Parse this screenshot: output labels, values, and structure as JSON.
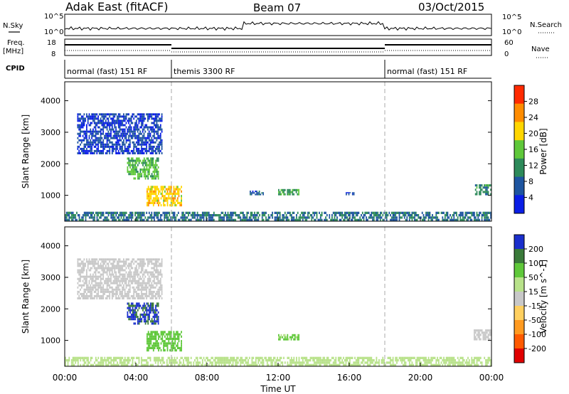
{
  "header": {
    "title_left": "Adak East (fitACF)",
    "title_center": "Beam 07",
    "title_right": "03/Oct/2015"
  },
  "strips": {
    "nsky_label": "N.Sky",
    "nsky_ticks": [
      "10^5",
      "10^0"
    ],
    "nsearch_label": "N.Search",
    "nsearch_ticks": [
      "10^5",
      "10^0"
    ],
    "freq_label": "Freq.",
    "freq_unit": "[MHz]",
    "freq_ticks": [
      "18",
      "8"
    ],
    "nave_label": "Nave",
    "nave_ticks": [
      "60",
      "0"
    ],
    "cpid_label": "CPID",
    "cpid_segments": [
      {
        "label": "normal (fast) 151 RF",
        "start_h": 0,
        "end_h": 6
      },
      {
        "label": "themis 3300 RF",
        "start_h": 6,
        "end_h": 18
      },
      {
        "label": "normal (fast) 151 RF",
        "start_h": 18,
        "end_h": 24
      }
    ]
  },
  "chart_data": [
    {
      "type": "heatmap",
      "name": "power",
      "ylabel": "Slant Range [km]",
      "yticks": [
        "1000",
        "2000",
        "3000",
        "4000"
      ],
      "ylim": [
        180,
        4600
      ],
      "xlim_hours": [
        0,
        24
      ],
      "colorbar": {
        "label": "Power [dB]",
        "ticks": [
          "4",
          "8",
          "12",
          "16",
          "20",
          "24",
          "28"
        ],
        "colors": [
          "#0a1ee6",
          "#1e55a0",
          "#2d8a5a",
          "#5fc83a",
          "#ffd600",
          "#ff8c00",
          "#ff2a00"
        ]
      },
      "echo_regions": [
        {
          "start_h": 0.7,
          "end_h": 5.5,
          "r_min": 2300,
          "r_max": 3600,
          "level": 4
        },
        {
          "start_h": 3.5,
          "end_h": 5.3,
          "r_min": 1500,
          "r_max": 2200,
          "level": 14
        },
        {
          "start_h": 4.6,
          "end_h": 6.6,
          "r_min": 650,
          "r_max": 1300,
          "level": 20
        },
        {
          "start_h": 10.4,
          "end_h": 11.2,
          "r_min": 1000,
          "r_max": 1150,
          "level": 6
        },
        {
          "start_h": 12.0,
          "end_h": 13.2,
          "r_min": 1000,
          "r_max": 1200,
          "level": 12
        },
        {
          "start_h": 15.8,
          "end_h": 16.3,
          "r_min": 1000,
          "r_max": 1100,
          "level": 4
        },
        {
          "start_h": 23.0,
          "end_h": 24.0,
          "r_min": 1000,
          "r_max": 1350,
          "level": 10
        },
        {
          "start_h": 0.0,
          "end_h": 24.0,
          "r_min": 180,
          "r_max": 480,
          "level": 8
        }
      ]
    },
    {
      "type": "heatmap",
      "name": "velocity",
      "ylabel": "Slant Range [km]",
      "yticks": [
        "1000",
        "2000",
        "3000",
        "4000"
      ],
      "ylim": [
        180,
        4600
      ],
      "xlim_hours": [
        0,
        24
      ],
      "colorbar": {
        "label": "Velocity [m s^-1]",
        "ticks": [
          "200",
          "100",
          "50",
          "15",
          "-15",
          "-50",
          "-100",
          "-200"
        ],
        "colors": [
          "#1a2fcc",
          "#3a7a3a",
          "#5fc83a",
          "#b8e28a",
          "#c8c8c8",
          "#ffd060",
          "#ff9a20",
          "#ff5a00",
          "#e00000"
        ]
      },
      "echo_regions": [
        {
          "start_h": 0.7,
          "end_h": 5.5,
          "r_min": 2300,
          "r_max": 3600,
          "level": 10
        },
        {
          "start_h": 3.5,
          "end_h": 5.3,
          "r_min": 1500,
          "r_max": 2200,
          "level": 200
        },
        {
          "start_h": 4.6,
          "end_h": 6.6,
          "r_min": 650,
          "r_max": 1300,
          "level": 90
        },
        {
          "start_h": 12.0,
          "end_h": 13.2,
          "r_min": 1000,
          "r_max": 1200,
          "level": 50
        },
        {
          "start_h": 23.0,
          "end_h": 24.0,
          "r_min": 1000,
          "r_max": 1350,
          "level": 10
        },
        {
          "start_h": 0.0,
          "end_h": 24.0,
          "r_min": 180,
          "r_max": 480,
          "level": 40
        }
      ]
    }
  ],
  "xaxis": {
    "ticks": [
      "00:00",
      "04:00",
      "08:00",
      "12:00",
      "16:00",
      "20:00",
      "00:00"
    ],
    "label": "Time UT"
  }
}
